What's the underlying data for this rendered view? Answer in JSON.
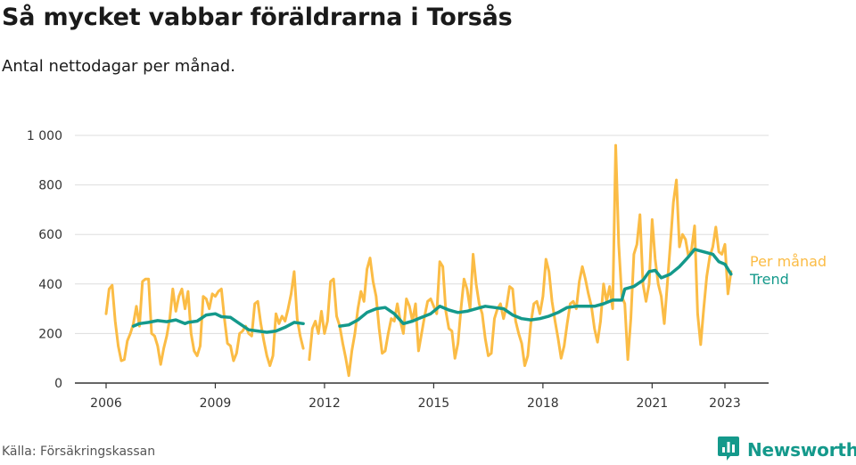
{
  "header": {
    "title": "Så mycket vabbar föräldrarna i Torsås",
    "subtitle": "Antal nettodagar per månad."
  },
  "footer": {
    "source": "Källa: Försäkringskassan",
    "brand": "Newsworthy"
  },
  "colors": {
    "monthly": "#fbbc45",
    "trend": "#14998b",
    "grid": "#dddddd",
    "axis": "#333333"
  },
  "icons": {
    "brand_logo": "newsworthy-logo-icon"
  },
  "chart_data": {
    "type": "line",
    "title": "Så mycket vabbar föräldrarna i Torsås",
    "subtitle": "Antal nettodagar per månad.",
    "xlabel": "",
    "ylabel": "",
    "xlim": [
      "2006-01",
      "2023-05"
    ],
    "ylim": [
      0,
      1000
    ],
    "yticks": [
      0,
      200,
      400,
      600,
      800,
      1000
    ],
    "ytick_labels": [
      "0",
      "200",
      "400",
      "600",
      "800",
      "1 000"
    ],
    "xticks": [
      "2006-01",
      "2009-01",
      "2012-01",
      "2015-01",
      "2018-01",
      "2021-01",
      "2023-01"
    ],
    "xtick_labels": [
      "2006",
      "2009",
      "2012",
      "2015",
      "2018",
      "2021",
      "2023"
    ],
    "grid": "horizontal",
    "legend": "inline-right",
    "series": [
      {
        "name": "Per månad",
        "color": "#fbbc45",
        "points": [
          [
            "2006-01",
            280
          ],
          [
            "2006-02",
            380
          ],
          [
            "2006-03",
            395
          ],
          [
            "2006-04",
            250
          ],
          [
            "2006-05",
            150
          ],
          [
            "2006-06",
            90
          ],
          [
            "2006-07",
            95
          ],
          [
            "2006-08",
            170
          ],
          [
            "2006-09",
            200
          ],
          [
            "2006-10",
            240
          ],
          [
            "2006-11",
            310
          ],
          [
            "2006-12",
            230
          ],
          [
            "2007-01",
            410
          ],
          [
            "2007-02",
            420
          ],
          [
            "2007-03",
            420
          ],
          [
            "2007-04",
            200
          ],
          [
            "2007-05",
            190
          ],
          [
            "2007-06",
            150
          ],
          [
            "2007-07",
            75
          ],
          [
            "2007-08",
            140
          ],
          [
            "2007-09",
            190
          ],
          [
            "2007-10",
            260
          ],
          [
            "2007-11",
            380
          ],
          [
            "2007-12",
            290
          ],
          [
            "2008-01",
            350
          ],
          [
            "2008-02",
            380
          ],
          [
            "2008-03",
            300
          ],
          [
            "2008-04",
            370
          ],
          [
            "2008-05",
            200
          ],
          [
            "2008-06",
            130
          ],
          [
            "2008-07",
            110
          ],
          [
            "2008-08",
            150
          ],
          [
            "2008-09",
            350
          ],
          [
            "2008-10",
            340
          ],
          [
            "2008-11",
            300
          ],
          [
            "2008-12",
            360
          ],
          [
            "2009-01",
            350
          ],
          [
            "2009-02",
            370
          ],
          [
            "2009-03",
            380
          ],
          [
            "2009-04",
            260
          ],
          [
            "2009-05",
            160
          ],
          [
            "2009-06",
            150
          ],
          [
            "2009-07",
            90
          ],
          [
            "2009-08",
            120
          ],
          [
            "2009-09",
            200
          ],
          [
            "2009-10",
            210
          ],
          [
            "2009-11",
            230
          ],
          [
            "2009-12",
            200
          ],
          [
            "2010-01",
            190
          ],
          [
            "2010-02",
            320
          ],
          [
            "2010-03",
            330
          ],
          [
            "2010-04",
            240
          ],
          [
            "2010-05",
            170
          ],
          [
            "2010-06",
            110
          ],
          [
            "2010-07",
            70
          ],
          [
            "2010-08",
            110
          ],
          [
            "2010-09",
            280
          ],
          [
            "2010-10",
            240
          ],
          [
            "2010-11",
            270
          ],
          [
            "2010-12",
            250
          ],
          [
            "2011-01",
            300
          ],
          [
            "2011-02",
            360
          ],
          [
            "2011-03",
            450
          ],
          [
            "2011-04",
            260
          ],
          [
            "2011-05",
            190
          ],
          [
            "2011-06",
            140
          ],
          [
            "2011-08",
            95
          ],
          [
            "2011-09",
            220
          ],
          [
            "2011-10",
            250
          ],
          [
            "2011-11",
            200
          ],
          [
            "2011-12",
            290
          ],
          [
            "2012-01",
            200
          ],
          [
            "2012-02",
            250
          ],
          [
            "2012-03",
            410
          ],
          [
            "2012-04",
            420
          ],
          [
            "2012-05",
            270
          ],
          [
            "2012-06",
            230
          ],
          [
            "2012-07",
            160
          ],
          [
            "2012-08",
            100
          ],
          [
            "2012-09",
            30
          ],
          [
            "2012-10",
            130
          ],
          [
            "2012-11",
            200
          ],
          [
            "2012-12",
            300
          ],
          [
            "2013-01",
            370
          ],
          [
            "2013-02",
            330
          ],
          [
            "2013-03",
            460
          ],
          [
            "2013-04",
            505
          ],
          [
            "2013-05",
            410
          ],
          [
            "2013-06",
            350
          ],
          [
            "2013-07",
            220
          ],
          [
            "2013-08",
            120
          ],
          [
            "2013-09",
            130
          ],
          [
            "2013-10",
            200
          ],
          [
            "2013-11",
            260
          ],
          [
            "2013-12",
            250
          ],
          [
            "2014-01",
            320
          ],
          [
            "2014-02",
            250
          ],
          [
            "2014-03",
            200
          ],
          [
            "2014-04",
            340
          ],
          [
            "2014-05",
            310
          ],
          [
            "2014-06",
            250
          ],
          [
            "2014-07",
            320
          ],
          [
            "2014-08",
            130
          ],
          [
            "2014-09",
            200
          ],
          [
            "2014-10",
            270
          ],
          [
            "2014-11",
            330
          ],
          [
            "2014-12",
            340
          ],
          [
            "2015-01",
            310
          ],
          [
            "2015-02",
            280
          ],
          [
            "2015-03",
            490
          ],
          [
            "2015-04",
            470
          ],
          [
            "2015-05",
            290
          ],
          [
            "2015-06",
            220
          ],
          [
            "2015-07",
            210
          ],
          [
            "2015-08",
            100
          ],
          [
            "2015-09",
            160
          ],
          [
            "2015-10",
            300
          ],
          [
            "2015-11",
            420
          ],
          [
            "2015-12",
            380
          ],
          [
            "2016-01",
            300
          ],
          [
            "2016-02",
            520
          ],
          [
            "2016-03",
            400
          ],
          [
            "2016-04",
            320
          ],
          [
            "2016-05",
            280
          ],
          [
            "2016-06",
            180
          ],
          [
            "2016-07",
            110
          ],
          [
            "2016-08",
            120
          ],
          [
            "2016-09",
            260
          ],
          [
            "2016-10",
            300
          ],
          [
            "2016-11",
            320
          ],
          [
            "2016-12",
            260
          ],
          [
            "2017-01",
            310
          ],
          [
            "2017-02",
            390
          ],
          [
            "2017-03",
            380
          ],
          [
            "2017-04",
            250
          ],
          [
            "2017-05",
            200
          ],
          [
            "2017-06",
            160
          ],
          [
            "2017-07",
            70
          ],
          [
            "2017-08",
            110
          ],
          [
            "2017-09",
            240
          ],
          [
            "2017-10",
            320
          ],
          [
            "2017-11",
            330
          ],
          [
            "2017-12",
            280
          ],
          [
            "2018-01",
            350
          ],
          [
            "2018-02",
            500
          ],
          [
            "2018-03",
            450
          ],
          [
            "2018-04",
            330
          ],
          [
            "2018-05",
            250
          ],
          [
            "2018-06",
            180
          ],
          [
            "2018-07",
            100
          ],
          [
            "2018-08",
            150
          ],
          [
            "2018-09",
            240
          ],
          [
            "2018-10",
            320
          ],
          [
            "2018-11",
            330
          ],
          [
            "2018-12",
            300
          ],
          [
            "2019-01",
            410
          ],
          [
            "2019-02",
            470
          ],
          [
            "2019-03",
            420
          ],
          [
            "2019-04",
            360
          ],
          [
            "2019-05",
            310
          ],
          [
            "2019-06",
            220
          ],
          [
            "2019-07",
            165
          ],
          [
            "2019-08",
            250
          ],
          [
            "2019-09",
            400
          ],
          [
            "2019-10",
            330
          ],
          [
            "2019-11",
            390
          ],
          [
            "2019-12",
            300
          ],
          [
            "2020-01",
            960
          ],
          [
            "2020-02",
            560
          ],
          [
            "2020-03",
            350
          ],
          [
            "2020-04",
            320
          ],
          [
            "2020-05",
            95
          ],
          [
            "2020-06",
            260
          ],
          [
            "2020-07",
            520
          ],
          [
            "2020-08",
            560
          ],
          [
            "2020-09",
            680
          ],
          [
            "2020-10",
            400
          ],
          [
            "2020-11",
            330
          ],
          [
            "2020-12",
            400
          ],
          [
            "2021-01",
            660
          ],
          [
            "2021-02",
            500
          ],
          [
            "2021-03",
            400
          ],
          [
            "2021-04",
            350
          ],
          [
            "2021-05",
            240
          ],
          [
            "2021-06",
            400
          ],
          [
            "2021-07",
            560
          ],
          [
            "2021-08",
            730
          ],
          [
            "2021-09",
            820
          ],
          [
            "2021-10",
            550
          ],
          [
            "2021-11",
            600
          ],
          [
            "2021-12",
            580
          ],
          [
            "2022-01",
            510
          ],
          [
            "2022-02",
            540
          ],
          [
            "2022-03",
            635
          ],
          [
            "2022-04",
            280
          ],
          [
            "2022-05",
            155
          ],
          [
            "2022-06",
            300
          ],
          [
            "2022-07",
            430
          ],
          [
            "2022-08",
            510
          ],
          [
            "2022-09",
            550
          ],
          [
            "2022-10",
            630
          ],
          [
            "2022-11",
            530
          ],
          [
            "2022-12",
            520
          ],
          [
            "2023-01",
            560
          ],
          [
            "2023-02",
            360
          ],
          [
            "2023-03",
            450
          ]
        ]
      },
      {
        "name": "Trend",
        "color": "#14998b",
        "points": [
          [
            "2006-10",
            230
          ],
          [
            "2006-12",
            240
          ],
          [
            "2007-03",
            245
          ],
          [
            "2007-06",
            252
          ],
          [
            "2007-09",
            248
          ],
          [
            "2007-12",
            255
          ],
          [
            "2008-03",
            240
          ],
          [
            "2008-04",
            245
          ],
          [
            "2008-07",
            250
          ],
          [
            "2008-10",
            275
          ],
          [
            "2009-01",
            280
          ],
          [
            "2009-03",
            268
          ],
          [
            "2009-06",
            265
          ],
          [
            "2009-09",
            240
          ],
          [
            "2009-12",
            215
          ],
          [
            "2010-03",
            210
          ],
          [
            "2010-06",
            205
          ],
          [
            "2010-09",
            210
          ],
          [
            "2010-12",
            225
          ],
          [
            "2011-03",
            245
          ],
          [
            "2011-06",
            240
          ],
          [
            "2012-06",
            230
          ],
          [
            "2012-09",
            235
          ],
          [
            "2012-12",
            255
          ],
          [
            "2013-03",
            285
          ],
          [
            "2013-06",
            300
          ],
          [
            "2013-09",
            305
          ],
          [
            "2013-12",
            280
          ],
          [
            "2014-03",
            240
          ],
          [
            "2014-06",
            250
          ],
          [
            "2014-09",
            265
          ],
          [
            "2014-12",
            280
          ],
          [
            "2015-03",
            310
          ],
          [
            "2015-06",
            295
          ],
          [
            "2015-09",
            285
          ],
          [
            "2015-12",
            290
          ],
          [
            "2016-03",
            300
          ],
          [
            "2016-06",
            310
          ],
          [
            "2016-09",
            305
          ],
          [
            "2016-12",
            300
          ],
          [
            "2017-03",
            275
          ],
          [
            "2017-06",
            260
          ],
          [
            "2017-09",
            255
          ],
          [
            "2017-12",
            260
          ],
          [
            "2018-03",
            270
          ],
          [
            "2018-06",
            285
          ],
          [
            "2018-09",
            305
          ],
          [
            "2018-12",
            310
          ],
          [
            "2019-03",
            310
          ],
          [
            "2019-06",
            310
          ],
          [
            "2019-09",
            320
          ],
          [
            "2019-12",
            335
          ],
          [
            "2020-03",
            335
          ],
          [
            "2020-04",
            380
          ],
          [
            "2020-07",
            390
          ],
          [
            "2020-10",
            415
          ],
          [
            "2020-12",
            450
          ],
          [
            "2021-02",
            455
          ],
          [
            "2021-04",
            425
          ],
          [
            "2021-07",
            440
          ],
          [
            "2021-10",
            470
          ],
          [
            "2022-01",
            510
          ],
          [
            "2022-03",
            540
          ],
          [
            "2022-06",
            530
          ],
          [
            "2022-09",
            520
          ],
          [
            "2022-11",
            490
          ],
          [
            "2023-01",
            480
          ],
          [
            "2023-03",
            440
          ]
        ]
      }
    ]
  }
}
